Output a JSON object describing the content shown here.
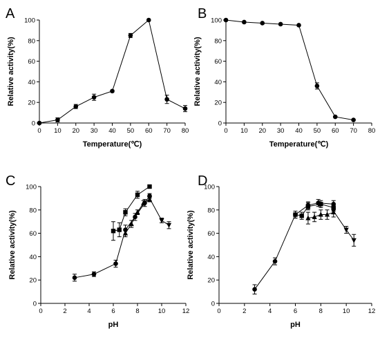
{
  "chart_data": [
    {
      "panel": "A",
      "type": "line",
      "xlabel": "Temperature(℃)",
      "ylabel": "Relative activity(%)",
      "xlim": [
        0,
        80
      ],
      "ylim": [
        0,
        100
      ],
      "xticks": [
        0,
        10,
        20,
        30,
        40,
        50,
        60,
        70,
        80
      ],
      "yticks": [
        0,
        20,
        40,
        60,
        80,
        100
      ],
      "series": [
        {
          "marker": "circle",
          "x": [
            0,
            10,
            20,
            30,
            40,
            50,
            60,
            70,
            80
          ],
          "y": [
            0,
            3,
            16,
            25,
            31,
            85,
            100,
            23,
            14
          ],
          "err": [
            0,
            2,
            2,
            3,
            1,
            2,
            0,
            4,
            3
          ]
        }
      ]
    },
    {
      "panel": "B",
      "type": "line",
      "xlabel": "Temperature(℃)",
      "ylabel": "Relative activity(%)",
      "xlim": [
        0,
        80
      ],
      "ylim": [
        0,
        100
      ],
      "xticks": [
        0,
        10,
        20,
        30,
        40,
        50,
        60,
        70,
        80
      ],
      "yticks": [
        0,
        20,
        40,
        60,
        80,
        100
      ],
      "series": [
        {
          "marker": "circle",
          "x": [
            0,
            10,
            20,
            30,
            40,
            50,
            60,
            70
          ],
          "y": [
            100,
            98,
            97,
            96,
            95,
            36,
            6,
            3
          ],
          "err": [
            0,
            0,
            0,
            0,
            0,
            3,
            0,
            0
          ]
        }
      ]
    },
    {
      "panel": "C",
      "type": "line",
      "xlabel": "pH",
      "ylabel": "Relative activity(%)",
      "xlim": [
        0,
        12
      ],
      "ylim": [
        0,
        100
      ],
      "xticks": [
        0,
        2,
        4,
        6,
        8,
        10,
        12
      ],
      "yticks": [
        0,
        20,
        40,
        60,
        80,
        100
      ],
      "series": [
        {
          "marker": "circle",
          "x": [
            2.8,
            4.4,
            6.2,
            7.0,
            7.8,
            8.6,
            9.0
          ],
          "y": [
            22,
            25,
            34,
            63,
            74,
            86,
            92
          ],
          "err": [
            3,
            2,
            3,
            4,
            3,
            3,
            2
          ]
        },
        {
          "marker": "square",
          "x": [
            6.0,
            6.5,
            7.0,
            8.0,
            9.0
          ],
          "y": [
            62,
            63,
            78,
            93,
            100
          ],
          "err": [
            8,
            6,
            3,
            3,
            1
          ]
        },
        {
          "marker": "triangle-up",
          "x": [
            7.0,
            7.5,
            8.0,
            8.5,
            9.0
          ],
          "y": [
            60,
            68,
            78,
            86,
            89
          ],
          "err": [
            3,
            3,
            2,
            2,
            2
          ]
        },
        {
          "marker": "triangle-down",
          "x": [
            9.0,
            10.0,
            10.6
          ],
          "y": [
            90,
            71,
            67
          ],
          "err": [
            2,
            2,
            3
          ]
        }
      ]
    },
    {
      "panel": "D",
      "type": "line",
      "xlabel": "pH",
      "ylabel": "Relative activity(%)",
      "xlim": [
        0,
        12
      ],
      "ylim": [
        0,
        100
      ],
      "xticks": [
        0,
        2,
        4,
        6,
        8,
        10,
        12
      ],
      "yticks": [
        0,
        20,
        40,
        60,
        80,
        100
      ],
      "series": [
        {
          "marker": "circle",
          "x": [
            2.8,
            4.4,
            6.0,
            7.0,
            7.8,
            9.0
          ],
          "y": [
            12,
            36,
            76,
            84,
            86,
            85
          ],
          "err": [
            4,
            3,
            3,
            3,
            3,
            3
          ]
        },
        {
          "marker": "square",
          "x": [
            6.0,
            6.5,
            7.0,
            8.0,
            9.0
          ],
          "y": [
            76,
            75,
            83,
            85,
            82
          ],
          "err": [
            3,
            3,
            3,
            3,
            3
          ]
        },
        {
          "marker": "triangle-up",
          "x": [
            7.0,
            7.5,
            8.0,
            8.5,
            9.0
          ],
          "y": [
            73,
            74,
            76,
            76,
            78
          ],
          "err": [
            5,
            4,
            4,
            4,
            4
          ]
        },
        {
          "marker": "triangle-down",
          "x": [
            9.0,
            10.0,
            10.6
          ],
          "y": [
            79,
            63,
            54
          ],
          "err": [
            2,
            3,
            5
          ]
        }
      ]
    }
  ]
}
